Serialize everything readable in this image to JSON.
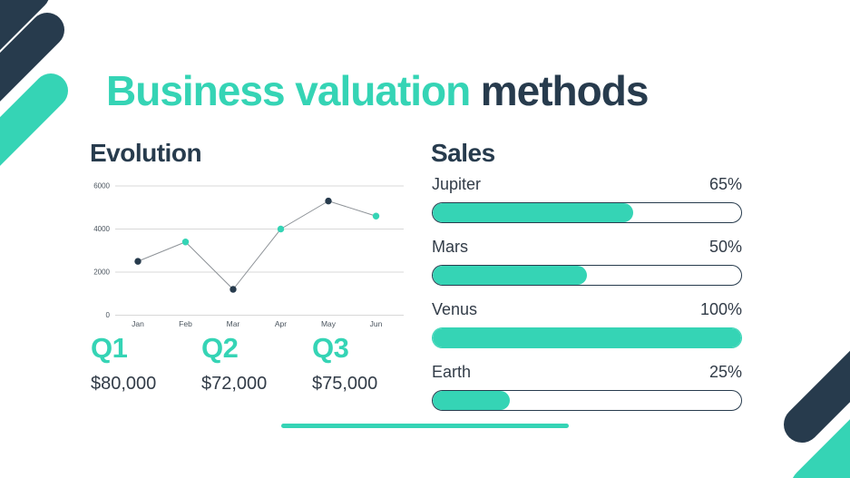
{
  "slide_title": {
    "part1": "Business valuation",
    "part2": "methods"
  },
  "colors": {
    "teal": "#35d4b5",
    "navy": "#273b4d",
    "text_dark": "#323c48",
    "axis_text": "#4a545e",
    "grid_line": "#d8d8d8",
    "chart_line": "#8e9398",
    "background": "#ffffff"
  },
  "evolution": {
    "heading": "Evolution"
  },
  "sales": {
    "heading": "Sales"
  },
  "quarters": [
    {
      "label": "Q1",
      "value": "$80,000"
    },
    {
      "label": "Q2",
      "value": "$72,000"
    },
    {
      "label": "Q3",
      "value": "$75,000"
    }
  ],
  "chart_data": [
    {
      "type": "line",
      "title": "Evolution",
      "x": [
        "Jan",
        "Feb",
        "Mar",
        "Apr",
        "May",
        "Jun"
      ],
      "values": [
        2500,
        3400,
        1200,
        4000,
        5300,
        4600
      ],
      "ylim": [
        0,
        6000
      ],
      "yticks": [
        0,
        2000,
        4000,
        6000
      ],
      "grid": true,
      "legend": "none",
      "point_colors": [
        "#273b4d",
        "#35d4b5",
        "#273b4d",
        "#35d4b5",
        "#273b4d",
        "#35d4b5"
      ]
    },
    {
      "type": "bar",
      "title": "Sales",
      "orientation": "horizontal",
      "categories": [
        "Jupiter",
        "Mars",
        "Venus",
        "Earth"
      ],
      "values": [
        65,
        50,
        100,
        25
      ],
      "unit": "%",
      "xlim": [
        0,
        100
      ]
    }
  ]
}
